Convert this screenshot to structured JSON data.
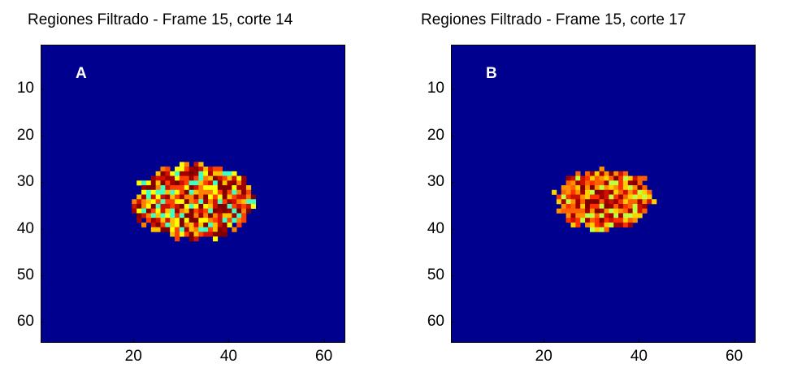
{
  "chart_data": [
    {
      "type": "heatmap",
      "title": "Regiones Filtrado - Frame 15, corte 14",
      "panel_label": "A",
      "xlabel": "",
      "ylabel": "",
      "xlim": [
        0.5,
        64.5
      ],
      "ylim": [
        0.5,
        64.5
      ],
      "y_reversed": true,
      "xticks": [
        20,
        40,
        60
      ],
      "yticks": [
        10,
        20,
        30,
        40,
        50,
        60
      ],
      "colormap": "jet",
      "background_color": "#00008F",
      "region": {
        "col_range": [
          20,
          45
        ],
        "row_range": [
          26,
          42
        ],
        "seed": 14,
        "palette": [
          "#FF4000",
          "#D01000",
          "#A00000",
          "#FF8000",
          "#FFC000",
          "#FFFF00",
          "#40FFC0",
          "#800000"
        ]
      }
    },
    {
      "type": "heatmap",
      "title": "Regiones Filtrado - Frame 15, corte 17",
      "panel_label": "B",
      "xlabel": "",
      "ylabel": "",
      "xlim": [
        0.5,
        64.5
      ],
      "ylim": [
        0.5,
        64.5
      ],
      "y_reversed": true,
      "xticks": [
        20,
        40,
        60
      ],
      "yticks": [
        10,
        20,
        30,
        40,
        50,
        60
      ],
      "colormap": "jet",
      "background_color": "#00008F",
      "region": {
        "col_range": [
          22,
          43
        ],
        "row_range": [
          27,
          40
        ],
        "seed": 17,
        "palette": [
          "#FF6000",
          "#D01000",
          "#A00000",
          "#FF9000",
          "#FFD000",
          "#C0FF40",
          "#800000",
          "#FF3000"
        ]
      }
    }
  ]
}
